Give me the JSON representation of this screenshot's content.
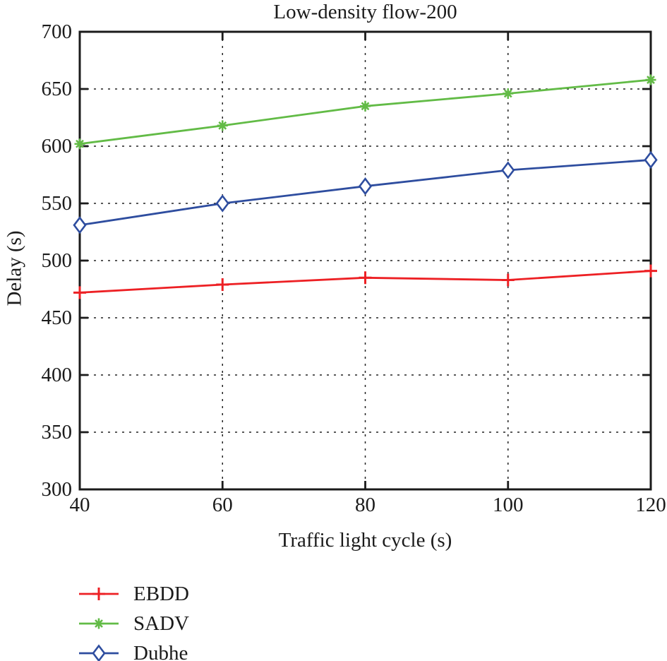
{
  "page": {
    "background": "#ffffff",
    "text_color": "#1b1b1b"
  },
  "chart_data": {
    "type": "line",
    "title": "Low-density flow-200",
    "xlabel": "Traffic light cycle (s)",
    "ylabel": "Delay (s)",
    "x": [
      40,
      60,
      80,
      100,
      120
    ],
    "xlim": [
      40,
      120
    ],
    "ylim": [
      300,
      700
    ],
    "xticks": [
      40,
      60,
      80,
      100,
      120
    ],
    "yticks": [
      300,
      350,
      400,
      450,
      500,
      550,
      600,
      650,
      700
    ],
    "grid": "dashed, interior gridlines on both axes",
    "frame": "full box with inward ticks",
    "legend_position": "below-left",
    "series": [
      {
        "name": "EBDD",
        "color": "#ed2024",
        "marker": "plus",
        "values": [
          472,
          479,
          485,
          483,
          491
        ]
      },
      {
        "name": "SADV",
        "color": "#62bb46",
        "marker": "asterisk",
        "values": [
          602,
          618,
          635,
          646,
          658
        ]
      },
      {
        "name": "Dubhe",
        "color": "#2e4d9f",
        "marker": "diamond-open",
        "values": [
          531,
          550,
          565,
          579,
          588
        ]
      }
    ]
  }
}
